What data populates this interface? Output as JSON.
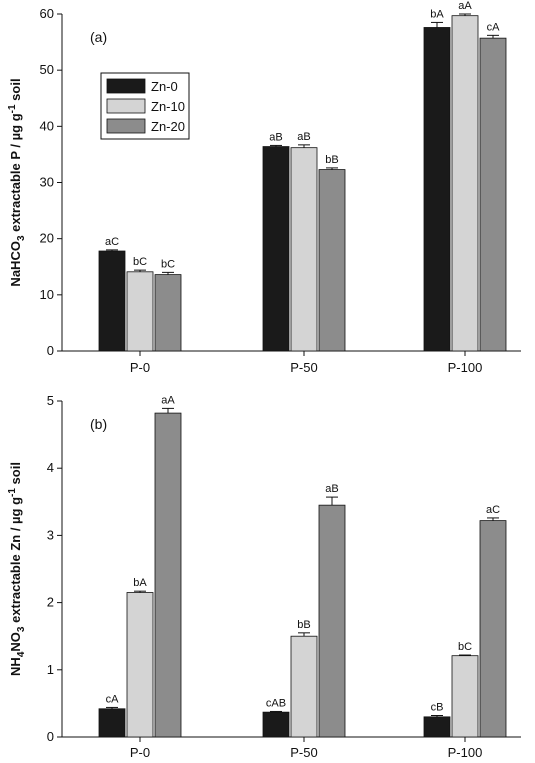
{
  "colors": {
    "Zn-0": "#1a1a1a",
    "Zn-10": "#d4d4d4",
    "Zn-20": "#8c8c8c",
    "axis": "#111111"
  },
  "legend": {
    "entries": [
      "Zn-0",
      "Zn-10",
      "Zn-20"
    ],
    "placement": "upper-left of panel (a)"
  },
  "chart_data": [
    {
      "type": "bar",
      "panel": "(a)",
      "ylabel": {
        "prefix": "NaHCO",
        "sub": "3",
        "main": " extractable P / µg g",
        "sup": "-1",
        "suffix": " soil"
      },
      "ylim": [
        0,
        60
      ],
      "yticks": [
        0,
        10,
        20,
        30,
        40,
        50,
        60
      ],
      "categories": [
        "P-0",
        "P-50",
        "P-100"
      ],
      "series": [
        {
          "name": "Zn-0",
          "values": [
            17.8,
            36.4,
            57.6
          ],
          "errors": [
            0.2,
            0.2,
            0.9
          ],
          "labels": [
            "aC",
            "aB",
            "bA"
          ]
        },
        {
          "name": "Zn-10",
          "values": [
            14.1,
            36.2,
            59.7
          ],
          "errors": [
            0.3,
            0.5,
            0.3
          ],
          "labels": [
            "bC",
            "aB",
            "aA"
          ]
        },
        {
          "name": "Zn-20",
          "values": [
            13.6,
            32.3,
            55.7
          ],
          "errors": [
            0.4,
            0.3,
            0.5
          ],
          "labels": [
            "bC",
            "bB",
            "cA"
          ]
        }
      ]
    },
    {
      "type": "bar",
      "panel": "(b)",
      "ylabel": {
        "prefix": "NH",
        "sub": "4",
        "mid": "NO",
        "sub2": "3",
        "main": " extractable Zn / µg g",
        "sup": "-1",
        "suffix": " soil"
      },
      "ylim": [
        0,
        5
      ],
      "yticks": [
        0,
        1,
        2,
        3,
        4,
        5
      ],
      "categories": [
        "P-0",
        "P-50",
        "P-100"
      ],
      "series": [
        {
          "name": "Zn-0",
          "values": [
            0.42,
            0.37,
            0.3
          ],
          "errors": [
            0.02,
            0.01,
            0.02
          ],
          "labels": [
            "cA",
            "cAB",
            "cB"
          ]
        },
        {
          "name": "Zn-10",
          "values": [
            2.15,
            1.5,
            1.21
          ],
          "errors": [
            0.02,
            0.05,
            0.01
          ],
          "labels": [
            "bA",
            "bB",
            "bC"
          ]
        },
        {
          "name": "Zn-20",
          "values": [
            4.82,
            3.45,
            3.22
          ],
          "errors": [
            0.07,
            0.12,
            0.04
          ],
          "labels": [
            "aA",
            "aB",
            "aC"
          ]
        }
      ]
    }
  ]
}
